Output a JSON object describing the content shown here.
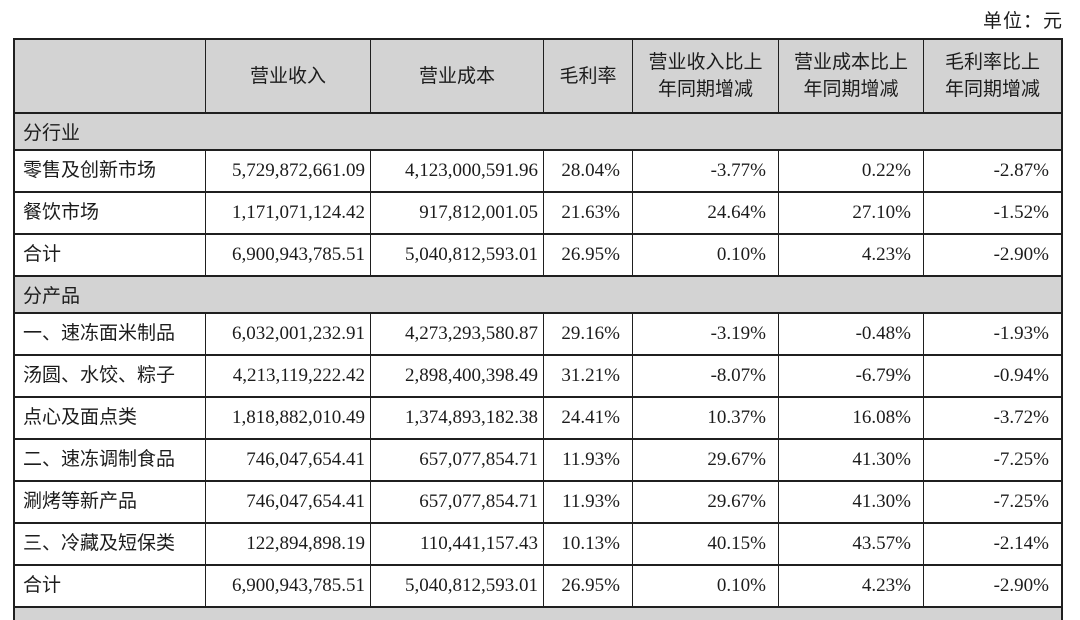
{
  "unit_label": "单位：元",
  "table": {
    "columns": [
      "",
      "营业收入",
      "营业成本",
      "毛利率",
      "营业收入比上\n年同期增减",
      "营业成本比上\n年同期增减",
      "毛利率比上\n年同期增减"
    ],
    "rows": [
      {
        "type": "section",
        "label": "分行业"
      },
      {
        "type": "data",
        "label": "零售及创新市场",
        "values": [
          "5,729,872,661.09",
          "4,123,000,591.96",
          "28.04%",
          "-3.77%",
          "0.22%",
          "-2.87%"
        ]
      },
      {
        "type": "data",
        "label": "餐饮市场",
        "values": [
          "1,171,071,124.42",
          "917,812,001.05",
          "21.63%",
          "24.64%",
          "27.10%",
          "-1.52%"
        ]
      },
      {
        "type": "data",
        "label": "合计",
        "values": [
          "6,900,943,785.51",
          "5,040,812,593.01",
          "26.95%",
          "0.10%",
          "4.23%",
          "-2.90%"
        ]
      },
      {
        "type": "section",
        "label": "分产品"
      },
      {
        "type": "data",
        "label": "一、速冻面米制品",
        "values": [
          "6,032,001,232.91",
          "4,273,293,580.87",
          "29.16%",
          "-3.19%",
          "-0.48%",
          "-1.93%"
        ]
      },
      {
        "type": "data",
        "label": "汤圆、水饺、粽子",
        "values": [
          "4,213,119,222.42",
          "2,898,400,398.49",
          "31.21%",
          "-8.07%",
          "-6.79%",
          "-0.94%"
        ]
      },
      {
        "type": "data",
        "label": "点心及面点类",
        "values": [
          "1,818,882,010.49",
          "1,374,893,182.38",
          "24.41%",
          "10.37%",
          "16.08%",
          "-3.72%"
        ]
      },
      {
        "type": "data",
        "label": "二、速冻调制食品",
        "values": [
          "746,047,654.41",
          "657,077,854.71",
          "11.93%",
          "29.67%",
          "41.30%",
          "-7.25%"
        ]
      },
      {
        "type": "data",
        "label": "涮烤等新产品",
        "values": [
          "746,047,654.41",
          "657,077,854.71",
          "11.93%",
          "29.67%",
          "41.30%",
          "-7.25%"
        ]
      },
      {
        "type": "data",
        "label": "三、冷藏及短保类",
        "values": [
          "122,894,898.19",
          "110,441,157.43",
          "10.13%",
          "40.15%",
          "43.57%",
          "-2.14%"
        ]
      },
      {
        "type": "data",
        "label": "合计",
        "values": [
          "6,900,943,785.51",
          "5,040,812,593.01",
          "26.95%",
          "0.10%",
          "4.23%",
          "-2.90%"
        ]
      },
      {
        "type": "strip",
        "label": ""
      }
    ]
  },
  "colors": {
    "section_bg": "#d3d3d3",
    "border": "#1f1f1f",
    "text": "#1c1c1c"
  }
}
